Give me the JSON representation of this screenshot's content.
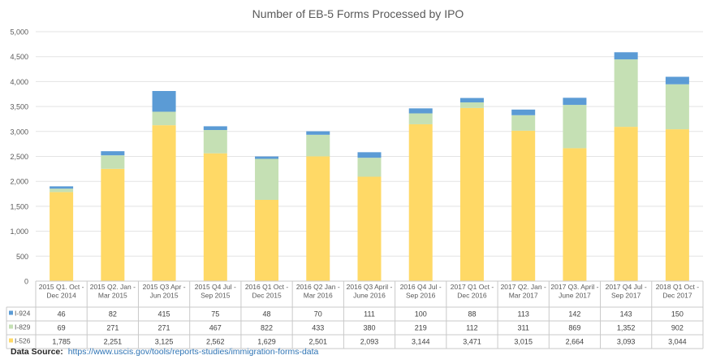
{
  "source": {
    "label": "Data Source:",
    "url": "https://www.uscis.gov/tools/reports-studies/immigration-forms-data"
  },
  "colors": {
    "I-924": "#5b9bd5",
    "I-829": "#c5e0b4",
    "I-526": "#ffd966",
    "grid": "#e3e3e3",
    "table_border": "#c9c9c9"
  },
  "chart_data": {
    "type": "bar",
    "stacked": true,
    "title": "Number of EB-5 Forms Processed by IPO",
    "xlabel": "",
    "ylabel": "",
    "ylim": [
      0,
      5000
    ],
    "yticks": [
      "0",
      "500",
      "1,000",
      "1,500",
      "2,000",
      "2,500",
      "3,000",
      "3,500",
      "4,000",
      "4,500",
      "5,000"
    ],
    "ytick_values": [
      0,
      500,
      1000,
      1500,
      2000,
      2500,
      3000,
      3500,
      4000,
      4500,
      5000
    ],
    "grid": true,
    "legend": "data-table",
    "categories": [
      [
        "2015 Q1. Oct -",
        "Dec 2014"
      ],
      [
        "2015 Q2. Jan -",
        "Mar 2015"
      ],
      [
        "2015 Q3 Apr -",
        "Jun 2015"
      ],
      [
        "2015 Q4 Jul -",
        "Sep 2015"
      ],
      [
        "2016 Q1 Oct -",
        "Dec 2015"
      ],
      [
        "2016 Q2 Jan -",
        "Mar 2016"
      ],
      [
        "2016 Q3 April -",
        "June 2016"
      ],
      [
        "2016 Q4 Jul -",
        "Sep 2016"
      ],
      [
        "2017 Q1 Oct -",
        "Dec 2016"
      ],
      [
        "2017 Q2. Jan -",
        "Mar 2017"
      ],
      [
        "2017 Q3. April -",
        "June 2017"
      ],
      [
        "2017 Q4 Jul -",
        "Sep 2017"
      ],
      [
        "2018 Q1 Oct -",
        "Dec 2017"
      ]
    ],
    "series": [
      {
        "name": "I-924",
        "values": [
          46,
          82,
          415,
          75,
          48,
          70,
          111,
          100,
          88,
          113,
          142,
          143,
          150
        ],
        "labels": [
          "46",
          "82",
          "415",
          "75",
          "48",
          "70",
          "111",
          "100",
          "88",
          "113",
          "142",
          "143",
          "150"
        ]
      },
      {
        "name": "I-829",
        "values": [
          69,
          271,
          271,
          467,
          822,
          433,
          380,
          219,
          112,
          311,
          869,
          1352,
          902
        ],
        "labels": [
          "69",
          "271",
          "271",
          "467",
          "822",
          "433",
          "380",
          "219",
          "112",
          "311",
          "869",
          "1,352",
          "902"
        ]
      },
      {
        "name": "I-526",
        "values": [
          1785,
          2251,
          3125,
          2562,
          1629,
          2501,
          2093,
          3144,
          3471,
          3015,
          2664,
          3093,
          3044
        ],
        "labels": [
          "1,785",
          "2,251",
          "3,125",
          "2,562",
          "1,629",
          "2,501",
          "2,093",
          "3,144",
          "3,471",
          "3,015",
          "2,664",
          "3,093",
          "3,044"
        ]
      }
    ],
    "stack_order": [
      "I-526",
      "I-829",
      "I-924"
    ]
  }
}
